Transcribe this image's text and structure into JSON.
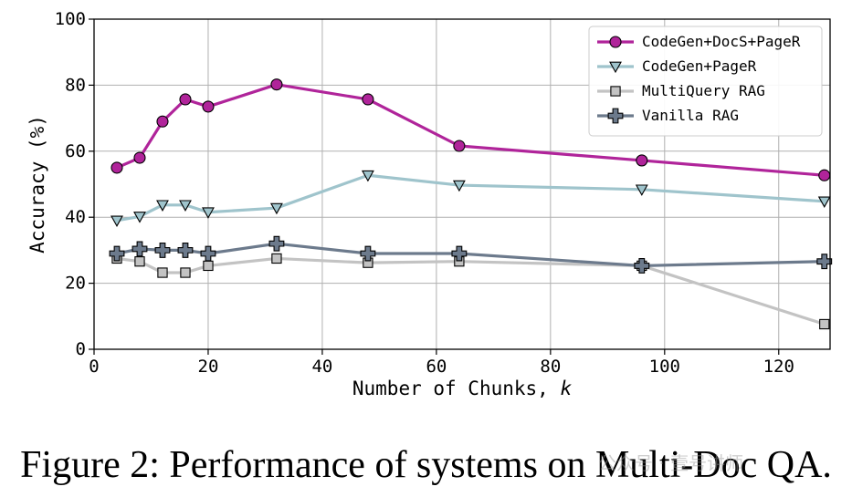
{
  "caption": "Figure 2: Performance of systems on Multi-Doc QA.",
  "watermark": "公众号 · 壹号讲师",
  "chart_data": {
    "type": "line",
    "title": "",
    "xlabel": "Number of Chunks, k",
    "xlabel_prefix": "Number of Chunks, ",
    "xlabel_var": "k",
    "ylabel": "Accuracy (%)",
    "xlim": [
      0,
      129
    ],
    "ylim": [
      0,
      100
    ],
    "xticks": [
      0,
      20,
      40,
      60,
      80,
      100,
      120
    ],
    "yticks": [
      0,
      20,
      40,
      60,
      80,
      100
    ],
    "grid": true,
    "legend_position": "top-right",
    "x": [
      4,
      8,
      12,
      16,
      20,
      32,
      48,
      64,
      96,
      128
    ],
    "series": [
      {
        "name": "CodeGen+DocS+PageR",
        "color": "#b0249a",
        "marker": "circle",
        "values": [
          55,
          58,
          69,
          75.7,
          73.5,
          80.2,
          75.7,
          61.6,
          57.2,
          52.7
        ],
        "x": [
          4,
          8,
          12,
          16,
          20,
          32,
          48,
          64,
          96,
          128
        ]
      },
      {
        "name": "CodeGen+PageR",
        "color": "#9fc4cc",
        "marker": "triangle-down",
        "values": [
          39,
          40.2,
          43.7,
          43.7,
          41.5,
          42.8,
          52.7,
          49.7,
          48.4,
          44.8
        ],
        "x": [
          4,
          8,
          12,
          16,
          20,
          32,
          48,
          64,
          96,
          128
        ]
      },
      {
        "name": "MultiQuery RAG",
        "color": "#c3c3c3",
        "marker": "square",
        "values": [
          27.5,
          26.6,
          23.2,
          23.2,
          25.3,
          27.5,
          26.2,
          26.6,
          25.3,
          7.6
        ],
        "x": [
          4,
          8,
          12,
          16,
          20,
          32,
          48,
          64,
          96,
          128
        ]
      },
      {
        "name": "Vanilla RAG",
        "color": "#6c7a8c",
        "marker": "plus",
        "values": [
          29,
          30.4,
          30,
          30,
          29,
          32,
          29,
          29,
          25.3,
          26.6
        ],
        "x": [
          4,
          8,
          12,
          16,
          20,
          32,
          48,
          64,
          96,
          128
        ]
      }
    ]
  }
}
